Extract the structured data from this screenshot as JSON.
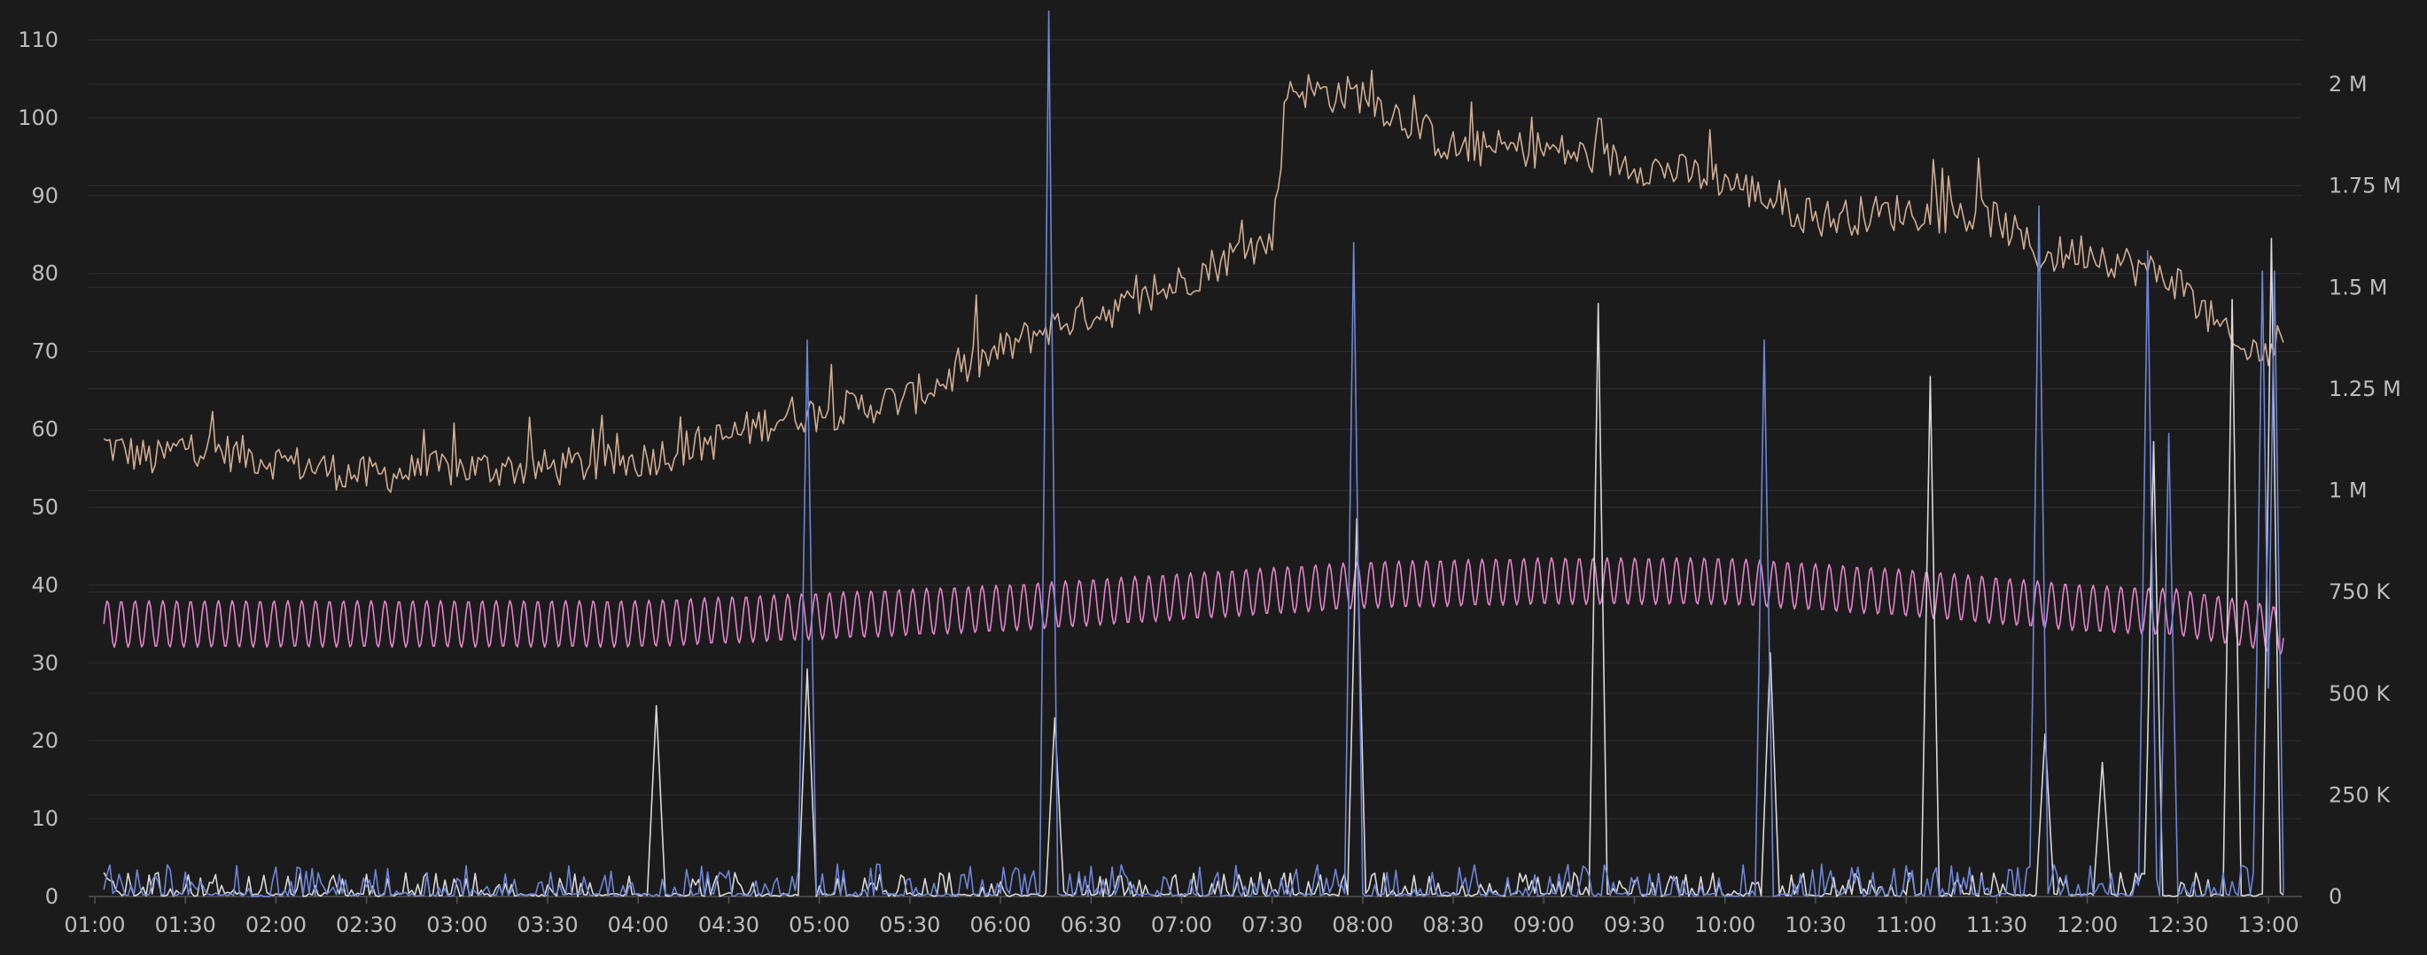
{
  "chart_data": {
    "type": "line",
    "title": "",
    "xlabel": "",
    "ylabel": "",
    "grid": true,
    "legend": "none",
    "x_ticks": [
      "01:00",
      "01:30",
      "02:00",
      "02:30",
      "03:00",
      "03:30",
      "04:00",
      "04:30",
      "05:00",
      "05:30",
      "06:00",
      "06:30",
      "07:00",
      "07:30",
      "08:00",
      "08:30",
      "09:00",
      "09:30",
      "10:00",
      "10:30",
      "11:00",
      "11:30",
      "12:00",
      "12:30",
      "13:00"
    ],
    "x_range": [
      "01:00",
      "13:05"
    ],
    "y_left": {
      "ticks": [
        0,
        10,
        20,
        30,
        40,
        50,
        60,
        70,
        80,
        90,
        100,
        110
      ],
      "range": [
        0,
        115
      ]
    },
    "y_right": {
      "ticks": [
        0,
        250000,
        500000,
        750000,
        1000000,
        1250000,
        1500000,
        1750000,
        2000000
      ],
      "tick_labels": [
        "0",
        "250 K",
        "500 K",
        "750 K",
        "1 M",
        "1.25 M",
        "1.5 M",
        "1.75 M",
        "2 M"
      ],
      "range": [
        0,
        2200000
      ]
    },
    "series": [
      {
        "axis": "left",
        "color": "#d2ad93",
        "points": [
          [
            "01:03",
            58
          ],
          [
            "01:20",
            56
          ],
          [
            "01:30",
            58
          ],
          [
            "02:00",
            56
          ],
          [
            "02:30",
            54
          ],
          [
            "03:00",
            55
          ],
          [
            "03:30",
            55
          ],
          [
            "04:00",
            56
          ],
          [
            "04:30",
            59
          ],
          [
            "04:50",
            62
          ],
          [
            "05:00",
            62
          ],
          [
            "05:30",
            64
          ],
          [
            "06:00",
            70
          ],
          [
            "06:15",
            73
          ],
          [
            "06:30",
            75
          ],
          [
            "06:45",
            76
          ],
          [
            "07:00",
            79
          ],
          [
            "07:20",
            83
          ],
          [
            "07:30",
            84
          ],
          [
            "07:35",
            104
          ],
          [
            "07:50",
            103
          ],
          [
            "08:00",
            103
          ],
          [
            "08:30",
            96
          ],
          [
            "09:00",
            96
          ],
          [
            "09:30",
            94
          ],
          [
            "10:00",
            92
          ],
          [
            "10:30",
            87
          ],
          [
            "11:00",
            88
          ],
          [
            "11:30",
            87
          ],
          [
            "11:45",
            82
          ],
          [
            "12:00",
            83
          ],
          [
            "12:30",
            79
          ],
          [
            "12:50",
            70
          ],
          [
            "13:00",
            70
          ],
          [
            "13:05",
            72
          ]
        ]
      },
      {
        "axis": "left",
        "color": "#e584cc",
        "points": [
          [
            "01:03",
            35
          ],
          [
            "02:00",
            35
          ],
          [
            "03:00",
            35
          ],
          [
            "04:00",
            35
          ],
          [
            "05:00",
            36
          ],
          [
            "06:00",
            37
          ],
          [
            "07:00",
            38.5
          ],
          [
            "08:00",
            40
          ],
          [
            "09:00",
            40.5
          ],
          [
            "10:00",
            40.5
          ],
          [
            "11:00",
            39
          ],
          [
            "12:00",
            37
          ],
          [
            "12:30",
            36.5
          ],
          [
            "13:00",
            34.5
          ],
          [
            "13:05",
            34
          ]
        ]
      },
      {
        "axis": "right",
        "color": "#d9d9d9",
        "spikes": [
          [
            "04:06",
            470000
          ],
          [
            "04:56",
            560000
          ],
          [
            "06:18",
            440000
          ],
          [
            "07:58",
            930000
          ],
          [
            "09:18",
            1460000
          ],
          [
            "10:15",
            600000
          ],
          [
            "11:08",
            1280000
          ],
          [
            "11:46",
            400000
          ],
          [
            "12:05",
            330000
          ],
          [
            "12:22",
            1120000
          ],
          [
            "12:48",
            1470000
          ],
          [
            "13:01",
            1620000
          ]
        ],
        "baseline": [
          0,
          60000
        ]
      },
      {
        "axis": "right",
        "color": "#6d86d8",
        "spikes": [
          [
            "04:56",
            1370000
          ],
          [
            "06:16",
            2180000
          ],
          [
            "07:57",
            1610000
          ],
          [
            "10:13",
            1370000
          ],
          [
            "11:44",
            1700000
          ],
          [
            "12:20",
            1590000
          ],
          [
            "12:27",
            1140000
          ],
          [
            "12:58",
            1540000
          ],
          [
            "13:02",
            1540000
          ]
        ],
        "baseline": [
          0,
          80000
        ]
      }
    ]
  }
}
